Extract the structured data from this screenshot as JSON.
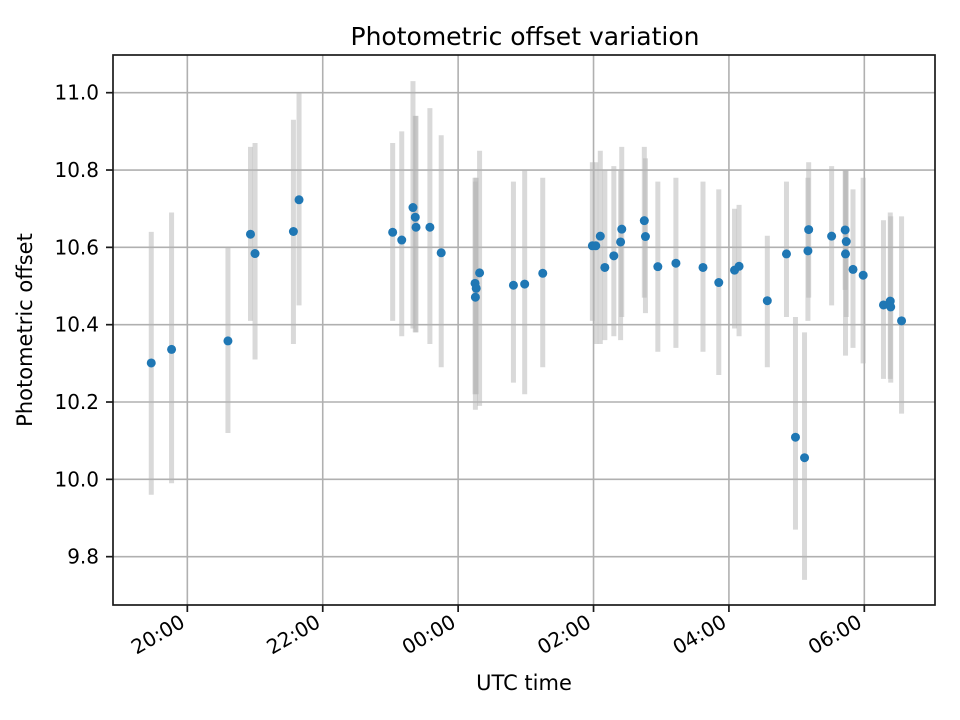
{
  "chart_data": {
    "type": "scatter",
    "title": "Photometric offset variation",
    "xlabel": "UTC time",
    "ylabel": "Photometric offset",
    "grid": true,
    "legend": null,
    "marker_color": "#1f77b4",
    "errorbar_color": "#b4b4b4",
    "grid_color": "#b0b0b0",
    "spine_color": "#1a1a1a",
    "xlim_hours": [
      18.902,
      31.044
    ],
    "ylim": [
      9.675,
      11.0975
    ],
    "x_ticks": [
      {
        "h": 20,
        "label": "20:00"
      },
      {
        "h": 22,
        "label": "22:00"
      },
      {
        "h": 24,
        "label": "00:00"
      },
      {
        "h": 26,
        "label": "02:00"
      },
      {
        "h": 28,
        "label": "04:00"
      },
      {
        "h": 30,
        "label": "06:00"
      }
    ],
    "y_ticks": [
      {
        "v": 9.8,
        "label": "9.8"
      },
      {
        "v": 10.0,
        "label": "10.0"
      },
      {
        "v": 10.2,
        "label": "10.2"
      },
      {
        "v": 10.4,
        "label": "10.4"
      },
      {
        "v": 10.6,
        "label": "10.6"
      },
      {
        "v": 10.8,
        "label": "10.8"
      },
      {
        "v": 11.0,
        "label": "11.0"
      }
    ],
    "points": [
      {
        "utc": "19:28",
        "h": 19.467,
        "y": 10.301,
        "lo": 9.96,
        "hi": 10.64
      },
      {
        "utc": "19:46",
        "h": 19.767,
        "y": 10.336,
        "lo": 9.99,
        "hi": 10.69
      },
      {
        "utc": "20:36",
        "h": 20.6,
        "y": 10.358,
        "lo": 10.12,
        "hi": 10.6
      },
      {
        "utc": "20:56",
        "h": 20.933,
        "y": 10.634,
        "lo": 10.41,
        "hi": 10.86
      },
      {
        "utc": "21:00",
        "h": 21.0,
        "y": 10.584,
        "lo": 10.31,
        "hi": 10.87
      },
      {
        "utc": "21:34",
        "h": 21.567,
        "y": 10.641,
        "lo": 10.35,
        "hi": 10.93
      },
      {
        "utc": "21:39",
        "h": 21.65,
        "y": 10.723,
        "lo": 10.45,
        "hi": 11.0
      },
      {
        "utc": "23:02",
        "h": 23.033,
        "y": 10.639,
        "lo": 10.41,
        "hi": 10.87
      },
      {
        "utc": "23:10",
        "h": 23.167,
        "y": 10.619,
        "lo": 10.37,
        "hi": 10.9
      },
      {
        "utc": "23:20",
        "h": 23.333,
        "y": 10.703,
        "lo": 10.39,
        "hi": 11.03
      },
      {
        "utc": "23:22",
        "h": 23.367,
        "y": 10.678,
        "lo": 10.38,
        "hi": 10.94
      },
      {
        "utc": "23:22",
        "h": 23.378,
        "y": 10.652,
        "lo": 10.38,
        "hi": 10.94
      },
      {
        "utc": "23:35",
        "h": 23.583,
        "y": 10.652,
        "lo": 10.35,
        "hi": 10.96
      },
      {
        "utc": "23:45",
        "h": 23.75,
        "y": 10.586,
        "lo": 10.29,
        "hi": 10.89
      },
      {
        "utc": "00:15",
        "h": 24.25,
        "y": 10.507,
        "lo": 10.22,
        "hi": 10.78
      },
      {
        "utc": "00:16",
        "h": 24.267,
        "y": 10.494,
        "lo": 10.22,
        "hi": 10.78
      },
      {
        "utc": "00:15",
        "h": 24.255,
        "y": 10.471,
        "lo": 10.18,
        "hi": 10.77
      },
      {
        "utc": "00:19",
        "h": 24.317,
        "y": 10.534,
        "lo": 10.19,
        "hi": 10.85
      },
      {
        "utc": "00:49",
        "h": 24.817,
        "y": 10.502,
        "lo": 10.25,
        "hi": 10.77
      },
      {
        "utc": "00:59",
        "h": 24.983,
        "y": 10.505,
        "lo": 10.22,
        "hi": 10.8
      },
      {
        "utc": "01:15",
        "h": 25.25,
        "y": 10.533,
        "lo": 10.29,
        "hi": 10.78
      },
      {
        "utc": "01:59",
        "h": 25.983,
        "y": 10.604,
        "lo": 10.41,
        "hi": 10.82
      },
      {
        "utc": "02:02",
        "h": 26.033,
        "y": 10.604,
        "lo": 10.35,
        "hi": 10.82
      },
      {
        "utc": "02:06",
        "h": 26.1,
        "y": 10.629,
        "lo": 10.35,
        "hi": 10.85
      },
      {
        "utc": "02:10",
        "h": 26.167,
        "y": 10.548,
        "lo": 10.36,
        "hi": 10.8
      },
      {
        "utc": "02:18",
        "h": 26.3,
        "y": 10.578,
        "lo": 10.37,
        "hi": 10.81
      },
      {
        "utc": "02:24",
        "h": 26.4,
        "y": 10.614,
        "lo": 10.36,
        "hi": 10.8
      },
      {
        "utc": "02:25",
        "h": 26.417,
        "y": 10.647,
        "lo": 10.42,
        "hi": 10.86
      },
      {
        "utc": "02:45",
        "h": 26.75,
        "y": 10.669,
        "lo": 10.47,
        "hi": 10.86
      },
      {
        "utc": "02:46",
        "h": 26.767,
        "y": 10.628,
        "lo": 10.43,
        "hi": 10.83
      },
      {
        "utc": "02:57",
        "h": 26.95,
        "y": 10.55,
        "lo": 10.33,
        "hi": 10.77
      },
      {
        "utc": "03:13",
        "h": 27.217,
        "y": 10.559,
        "lo": 10.34,
        "hi": 10.78
      },
      {
        "utc": "03:37",
        "h": 27.617,
        "y": 10.548,
        "lo": 10.33,
        "hi": 10.77
      },
      {
        "utc": "03:51",
        "h": 27.85,
        "y": 10.509,
        "lo": 10.27,
        "hi": 10.75
      },
      {
        "utc": "04:05",
        "h": 28.083,
        "y": 10.541,
        "lo": 10.39,
        "hi": 10.7
      },
      {
        "utc": "04:09",
        "h": 28.15,
        "y": 10.551,
        "lo": 10.37,
        "hi": 10.71
      },
      {
        "utc": "04:34",
        "h": 28.567,
        "y": 10.462,
        "lo": 10.29,
        "hi": 10.63
      },
      {
        "utc": "04:51",
        "h": 28.85,
        "y": 10.583,
        "lo": 10.42,
        "hi": 10.77
      },
      {
        "utc": "04:59",
        "h": 28.983,
        "y": 10.109,
        "lo": 9.87,
        "hi": 10.42
      },
      {
        "utc": "05:07",
        "h": 29.117,
        "y": 10.056,
        "lo": 9.74,
        "hi": 10.38
      },
      {
        "utc": "05:10",
        "h": 29.167,
        "y": 10.591,
        "lo": 10.41,
        "hi": 10.78
      },
      {
        "utc": "05:11",
        "h": 29.178,
        "y": 10.646,
        "lo": 10.47,
        "hi": 10.82
      },
      {
        "utc": "05:31",
        "h": 29.517,
        "y": 10.629,
        "lo": 10.45,
        "hi": 10.81
      },
      {
        "utc": "05:43",
        "h": 29.717,
        "y": 10.645,
        "lo": 10.49,
        "hi": 10.8
      },
      {
        "utc": "05:44",
        "h": 29.733,
        "y": 10.615,
        "lo": 10.42,
        "hi": 10.8
      },
      {
        "utc": "05:43",
        "h": 29.722,
        "y": 10.583,
        "lo": 10.32,
        "hi": 10.8
      },
      {
        "utc": "05:50",
        "h": 29.833,
        "y": 10.543,
        "lo": 10.34,
        "hi": 10.75
      },
      {
        "utc": "05:59",
        "h": 29.983,
        "y": 10.528,
        "lo": 10.3,
        "hi": 10.78
      },
      {
        "utc": "06:17",
        "h": 30.283,
        "y": 10.451,
        "lo": 10.26,
        "hi": 10.67
      },
      {
        "utc": "06:23",
        "h": 30.383,
        "y": 10.461,
        "lo": 10.26,
        "hi": 10.69
      },
      {
        "utc": "06:23",
        "h": 30.39,
        "y": 10.446,
        "lo": 10.25,
        "hi": 10.68
      },
      {
        "utc": "06:33",
        "h": 30.55,
        "y": 10.41,
        "lo": 10.17,
        "hi": 10.68
      }
    ]
  }
}
